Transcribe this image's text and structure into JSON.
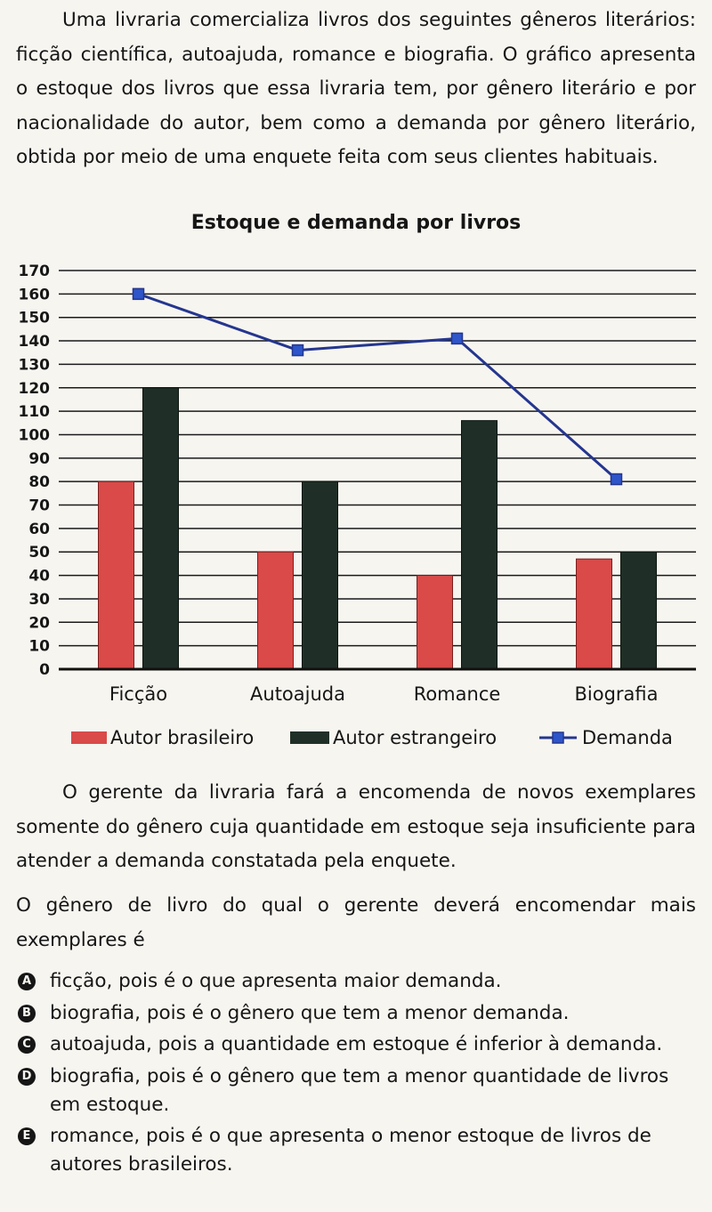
{
  "intro_text": "Uma livraria comercializa livros dos seguintes gêneros literários: ficção científica, autoajuda, romance e biografia. O gráfico apresenta o estoque dos livros que essa livraria tem, por gênero literário e por nacionalidade do autor, bem como a demanda por gênero literário, obtida por meio de uma enquete feita com seus clientes habituais.",
  "paragraph2": "O gerente da livraria fará a encomenda de novos exemplares somente do gênero cuja quantidade em estoque seja insuficiente para atender a demanda constatada pela enquete.",
  "question": "O gênero de livro do qual o gerente deverá encomendar mais exemplares é",
  "options": [
    {
      "letter": "A",
      "text": "ficção, pois é o que apresenta maior demanda."
    },
    {
      "letter": "B",
      "text": "biografia, pois é o gênero que tem a menor demanda."
    },
    {
      "letter": "C",
      "text": "autoajuda, pois a quantidade em estoque é inferior à demanda."
    },
    {
      "letter": "D",
      "text": "biografia, pois é o gênero que tem a menor quantidade de livros em estoque."
    },
    {
      "letter": "E",
      "text": "romance, pois é o que apresenta o menor estoque de livros de autores brasileiros."
    }
  ],
  "colors": {
    "brasileiro": "#d94a48",
    "estrangeiro": "#1f2f27",
    "demanda": "#24368f",
    "demanda_marker": "#2e55c9"
  },
  "chart_data": {
    "type": "bar",
    "title": "Estoque e demanda por livros",
    "categories": [
      "Ficção",
      "Autoajuda",
      "Romance",
      "Biografia"
    ],
    "series": [
      {
        "name": "Autor brasileiro",
        "type": "bar",
        "values": [
          80,
          50,
          40,
          47
        ]
      },
      {
        "name": "Autor estrangeiro",
        "type": "bar",
        "values": [
          120,
          80,
          106,
          50
        ]
      },
      {
        "name": "Demanda",
        "type": "line",
        "values": [
          160,
          136,
          141,
          81
        ]
      }
    ],
    "yticks": [
      0,
      10,
      20,
      30,
      40,
      50,
      60,
      70,
      80,
      90,
      100,
      110,
      120,
      130,
      140,
      150,
      160,
      170
    ],
    "ylim": [
      0,
      170
    ],
    "grid": true,
    "legend_position": "bottom"
  }
}
